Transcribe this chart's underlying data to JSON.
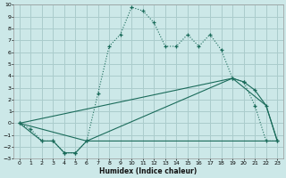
{
  "xlabel": "Humidex (Indice chaleur)",
  "bg_color": "#cce8e8",
  "grid_color": "#aacccc",
  "line_color": "#1a6b5a",
  "xlim": [
    -0.5,
    23.5
  ],
  "ylim": [
    -3,
    10
  ],
  "xtick_labels": [
    "0",
    "1",
    "2",
    "3",
    "4",
    "5",
    "6",
    "7",
    "8",
    "9",
    "10",
    "11",
    "12",
    "13",
    "14",
    "15",
    "16",
    "17",
    "18",
    "19",
    "20",
    "21",
    "22",
    "23"
  ],
  "xticks": [
    0,
    1,
    2,
    3,
    4,
    5,
    6,
    7,
    8,
    9,
    10,
    11,
    12,
    13,
    14,
    15,
    16,
    17,
    18,
    19,
    20,
    21,
    22,
    23
  ],
  "yticks": [
    -3,
    -2,
    -1,
    0,
    1,
    2,
    3,
    4,
    5,
    6,
    7,
    8,
    9,
    10
  ],
  "series1_x": [
    0,
    1,
    2,
    3,
    4,
    5,
    6,
    7,
    8,
    9,
    10,
    11,
    12,
    13,
    14,
    15,
    16,
    17,
    18,
    19,
    20,
    21,
    22,
    23
  ],
  "series1_y": [
    0,
    -0.5,
    -1.5,
    -1.5,
    -2.5,
    -2.5,
    -1.5,
    2.5,
    6.5,
    7.5,
    9.8,
    9.5,
    8.5,
    6.5,
    6.5,
    7.5,
    6.5,
    7.5,
    6.2,
    3.8,
    3.5,
    1.5,
    -1.5,
    -1.5
  ],
  "series2_x": [
    0,
    2,
    3,
    4,
    5,
    6,
    19,
    20,
    21,
    22,
    23
  ],
  "series2_y": [
    0,
    -1.5,
    -1.5,
    -2.5,
    -2.5,
    -1.5,
    3.8,
    3.5,
    2.8,
    1.5,
    -1.5
  ],
  "series3_x": [
    0,
    6,
    22,
    23
  ],
  "series3_y": [
    0,
    -1.5,
    -1.5,
    -1.5
  ],
  "series4_x": [
    0,
    19,
    22,
    23
  ],
  "series4_y": [
    0,
    3.8,
    1.5,
    -1.5
  ]
}
